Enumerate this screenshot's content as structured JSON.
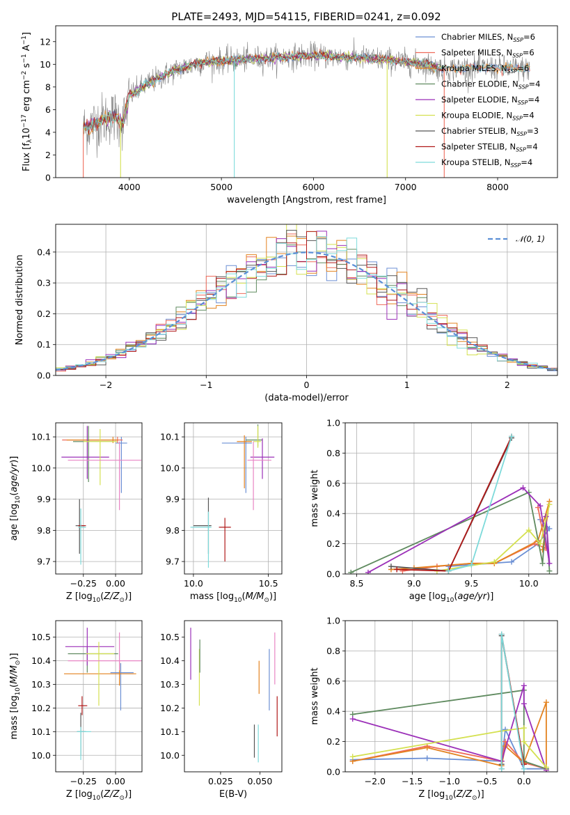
{
  "title": "PLATE=2493, MJD=54115, FIBERID=0241, z=0.092",
  "colors": {
    "Chabrier MILES": "#6b8fd4",
    "Salpeter MILES": "#ee6a5a",
    "Kroupa MILES": "#e3821f",
    "Chabrier ELODIE": "#5f8a5f",
    "Salpeter ELODIE": "#9b2fb8",
    "Kroupa ELODIE": "#d4e050",
    "Chabrier STELIB": "#555555",
    "Salpeter STELIB": "#b01818",
    "Kroupa STELIB": "#7ddada",
    "Salpeter MILES alt": "#e884c4",
    "data": "#808080",
    "normal": "#5b8fd6"
  },
  "chart_data": [
    {
      "id": "spectrum",
      "type": "line",
      "xlabel": "wavelength [Angstrom, rest frame]",
      "ylabel": "Flux [f_λ10^-17 erg cm^-2 s^-1 A^-1]",
      "xlim": [
        3200,
        8650
      ],
      "ylim": [
        0,
        13.4
      ],
      "xticks": [
        4000,
        5000,
        6000,
        7000,
        8000
      ],
      "yticks": [
        0,
        2,
        4,
        6,
        8,
        10,
        12
      ],
      "legend": "right",
      "legend_entries": [
        {
          "name": "Chabrier MILES",
          "ssp": "6"
        },
        {
          "name": "Salpeter MILES",
          "ssp": "6"
        },
        {
          "name": "Kroupa MILES",
          "ssp": "6"
        },
        {
          "name": "Chabrier ELODIE",
          "ssp": "4"
        },
        {
          "name": "Salpeter ELODIE",
          "ssp": "4"
        },
        {
          "name": "Kroupa ELODIE",
          "ssp": "4"
        },
        {
          "name": "Chabrier STELIB",
          "ssp": "3"
        },
        {
          "name": "Salpeter STELIB",
          "ssp": "4"
        },
        {
          "name": "Kroupa STELIB",
          "ssp": "4"
        }
      ],
      "data_range": [
        3500,
        8350
      ],
      "continuum": [
        [
          3500,
          4.3
        ],
        [
          3700,
          5.1
        ],
        [
          3850,
          5.4
        ],
        [
          3930,
          4.8
        ],
        [
          4000,
          7.2
        ],
        [
          4200,
          8.3
        ],
        [
          4500,
          9.5
        ],
        [
          4800,
          10.2
        ],
        [
          5200,
          10.4
        ],
        [
          5600,
          10.6
        ],
        [
          6000,
          10.8
        ],
        [
          6400,
          10.6
        ],
        [
          6800,
          10.4
        ],
        [
          7200,
          10.0
        ],
        [
          7400,
          9.6
        ],
        [
          7800,
          9.7
        ],
        [
          8350,
          9.6
        ]
      ]
    },
    {
      "id": "residuals",
      "type": "histogram",
      "xlabel": "(data-model)/error",
      "ylabel": "Normed distribution",
      "xlim": [
        -2.5,
        2.5
      ],
      "ylim": [
        0,
        0.49
      ],
      "xticks": [
        -2,
        -1,
        0,
        1,
        2
      ],
      "yticks": [
        0.0,
        0.1,
        0.2,
        0.3,
        0.4
      ],
      "grid": true,
      "legend": "top-right",
      "legend_label": "𝒩(0, 1)",
      "bin_width": 0.1
    },
    {
      "id": "age-vs-Z",
      "type": "errorbar",
      "xlabel": "Z [log10(Z/Z⊙)]",
      "ylabel": "age  [log10(age/yr)]",
      "xlim": [
        -0.465,
        0.205
      ],
      "ylim": [
        9.66,
        10.145
      ],
      "xticks": [
        -0.25,
        0.0
      ],
      "yticks": [
        9.7,
        9.8,
        9.9,
        10.0,
        10.1
      ],
      "grid": true,
      "points": [
        {
          "model": "Chabrier MILES",
          "x": 0.045,
          "y": 10.08,
          "xerr": [
            0.045,
            0.045
          ],
          "yerr": [
            0.16,
            0.02
          ]
        },
        {
          "model": "Salpeter MILES",
          "x": 0.015,
          "y": 10.09,
          "xerr": [
            0.43,
            0.04
          ],
          "yerr": [
            0.01,
            0.01
          ]
        },
        {
          "model": "Kroupa MILES",
          "x": -0.02,
          "y": 10.09,
          "xerr": [
            0.36,
            0.04
          ],
          "yerr": [
            0.01,
            0.01
          ]
        },
        {
          "model": "Chabrier ELODIE",
          "x": -0.21,
          "y": 10.085,
          "xerr": [
            0.12,
            0.19
          ],
          "yerr": [
            0.13,
            0.05
          ]
        },
        {
          "model": "Salpeter ELODIE",
          "x": -0.22,
          "y": 10.035,
          "xerr": [
            0.2,
            0.17
          ],
          "yerr": [
            0.07,
            0.1
          ]
        },
        {
          "model": "Kroupa ELODIE",
          "x": -0.12,
          "y": 10.085,
          "xerr": [
            0.13,
            0.13
          ],
          "yerr": [
            0.14,
            0.04
          ]
        },
        {
          "model": "Chabrier STELIB",
          "x": -0.28,
          "y": 9.815,
          "xerr": [
            0.03,
            0.04
          ],
          "yerr": [
            0.09,
            0.085
          ]
        },
        {
          "model": "Salpeter STELIB",
          "x": -0.27,
          "y": 9.815,
          "xerr": [
            0.02,
            0.04
          ],
          "yerr": [
            0.005,
            0.005
          ]
        },
        {
          "model": "Kroupa STELIB",
          "x": -0.27,
          "y": 9.81,
          "xerr": [
            0.02,
            0.04
          ],
          "yerr": [
            0.12,
            0.06
          ]
        },
        {
          "model": "Salpeter MILES alt",
          "x": 0.03,
          "y": 10.025,
          "xerr": [
            0.4,
            0.17
          ],
          "yerr": [
            0.16,
            0.06
          ]
        }
      ]
    },
    {
      "id": "age-vs-mass",
      "type": "errorbar",
      "xlabel": "mass [log10(M/M⊙)]",
      "xlim": [
        9.94,
        10.59
      ],
      "ylim": [
        9.66,
        10.145
      ],
      "xticks": [
        10.0,
        10.5
      ],
      "yticks": [
        9.7,
        9.8,
        9.9,
        10.0,
        10.1
      ],
      "grid": true,
      "points": [
        {
          "model": "Chabrier MILES",
          "x": 10.35,
          "y": 10.08,
          "xerr": [
            0.16,
            0.04
          ],
          "yerr": [
            0.16,
            0.02
          ]
        },
        {
          "model": "Kroupa MILES",
          "x": 10.34,
          "y": 10.085,
          "xerr": [
            0.05,
            0.05
          ],
          "yerr": [
            0.15,
            0.02
          ]
        },
        {
          "model": "Chabrier ELODIE",
          "x": 10.43,
          "y": 10.09,
          "xerr": [
            0.08,
            0.03
          ],
          "yerr": [
            0.02,
            0.05
          ]
        },
        {
          "model": "Salpeter ELODIE",
          "x": 10.46,
          "y": 10.035,
          "xerr": [
            0.08,
            0.08
          ],
          "yerr": [
            0.07,
            0.06
          ]
        },
        {
          "model": "Kroupa ELODIE",
          "x": 10.43,
          "y": 10.085,
          "xerr": [
            0.03,
            0.02
          ],
          "yerr": [
            0.02,
            0.05
          ]
        },
        {
          "model": "Salpeter MILES alt",
          "x": 10.4,
          "y": 10.025,
          "xerr": [
            0.04,
            0.12
          ],
          "yerr": [
            0.16,
            0.06
          ]
        },
        {
          "model": "Chabrier STELIB",
          "x": 10.1,
          "y": 9.815,
          "xerr": [
            0.1,
            0.02
          ],
          "yerr": [
            0.09,
            0.09
          ]
        },
        {
          "model": "Salpeter STELIB",
          "x": 10.21,
          "y": 9.81,
          "xerr": [
            0.04,
            0.04
          ],
          "yerr": [
            0.11,
            0.03
          ]
        },
        {
          "model": "Kroupa STELIB",
          "x": 10.1,
          "y": 9.81,
          "xerr": [
            0.12,
            0.02
          ],
          "yerr": [
            0.13,
            0.05
          ]
        }
      ]
    },
    {
      "id": "weight-vs-age",
      "type": "line",
      "xlabel": "age  [log10(age/yr)]",
      "ylabel": "mass weight",
      "xlim": [
        8.4,
        10.25
      ],
      "ylim": [
        0,
        1.0
      ],
      "xticks": [
        8.5,
        9.0,
        9.5,
        10.0
      ],
      "yticks": [
        0.0,
        0.2,
        0.4,
        0.6,
        0.8,
        1.0
      ],
      "grid": true,
      "series": [
        {
          "model": "Chabrier MILES",
          "x": [
            9.3,
            9.85,
            10.08,
            10.18,
            10.1
          ],
          "y": [
            0.05,
            0.08,
            0.2,
            0.3,
            0.36
          ]
        },
        {
          "model": "Salpeter MILES",
          "x": [
            8.9,
            9.2,
            9.5,
            9.7,
            10.05,
            10.15,
            10.08
          ],
          "y": [
            0.02,
            0.05,
            0.07,
            0.07,
            0.2,
            0.17,
            0.44
          ]
        },
        {
          "model": "Kroupa MILES",
          "x": [
            8.8,
            9.0,
            9.5,
            9.7,
            10.08,
            10.18,
            10.12
          ],
          "y": [
            0.03,
            0.04,
            0.07,
            0.07,
            0.22,
            0.48,
            0.16
          ]
        },
        {
          "model": "Chabrier ELODIE",
          "x": [
            8.45,
            10.0,
            10.12,
            10.15,
            10.18
          ],
          "y": [
            0.01,
            0.54,
            0.07,
            0.38,
            0.02
          ]
        },
        {
          "model": "Salpeter ELODIE",
          "x": [
            8.6,
            9.95,
            10.1,
            10.18,
            10.15
          ],
          "y": [
            0.01,
            0.57,
            0.45,
            0.07,
            0.38
          ]
        },
        {
          "model": "Kroupa ELODIE",
          "x": [
            9.2,
            9.7,
            10.0,
            10.1,
            10.18
          ],
          "y": [
            0.02,
            0.08,
            0.29,
            0.2,
            0.46
          ]
        },
        {
          "model": "Chabrier STELIB",
          "x": [
            8.8,
            9.3,
            9.85
          ],
          "y": [
            0.05,
            0.02,
            0.9
          ]
        },
        {
          "model": "Salpeter STELIB",
          "x": [
            8.85,
            9.3,
            9.85
          ],
          "y": [
            0.03,
            0.02,
            0.91
          ]
        },
        {
          "model": "Kroupa STELIB",
          "x": [
            9.3,
            9.5,
            9.85
          ],
          "y": [
            0.02,
            0.06,
            0.91
          ]
        }
      ]
    },
    {
      "id": "mass-vs-Z",
      "type": "errorbar",
      "xlabel": "Z [log10(Z/Z⊙)]",
      "ylabel": "mass [log10(M/M⊙)]",
      "xlim": [
        -0.465,
        0.205
      ],
      "ylim": [
        9.93,
        10.57
      ],
      "xticks": [
        -0.25,
        0.0
      ],
      "yticks": [
        10.0,
        10.1,
        10.2,
        10.3,
        10.4,
        10.5
      ],
      "grid": true,
      "points": [
        {
          "model": "Chabrier MILES",
          "x": 0.04,
          "y": 10.35,
          "xerr": [
            0.08,
            0.1
          ],
          "yerr": [
            0.16,
            0.04
          ]
        },
        {
          "model": "Kroupa MILES",
          "x": 0.03,
          "y": 10.345,
          "xerr": [
            0.43,
            0.13
          ],
          "yerr": [
            0.05,
            0.05
          ]
        },
        {
          "model": "Chabrier ELODIE",
          "x": -0.22,
          "y": 10.43,
          "xerr": [
            0.15,
            0.24
          ],
          "yerr": [
            0.08,
            0.03
          ]
        },
        {
          "model": "Salpeter ELODIE",
          "x": -0.22,
          "y": 10.46,
          "xerr": [
            0.17,
            0.21
          ],
          "yerr": [
            0.08,
            0.08
          ]
        },
        {
          "model": "Kroupa ELODIE",
          "x": -0.13,
          "y": 10.43,
          "xerr": [
            0.1,
            0.12
          ],
          "yerr": [
            0.22,
            0.05
          ]
        },
        {
          "model": "Salpeter MILES alt",
          "x": 0.03,
          "y": 10.4,
          "xerr": [
            0.4,
            0.17
          ],
          "yerr": [
            0.04,
            0.12
          ]
        },
        {
          "model": "Chabrier STELIB",
          "x": -0.27,
          "y": 10.1,
          "xerr": [
            0.03,
            0.04
          ],
          "yerr": [
            0.1,
            0.08
          ]
        },
        {
          "model": "Salpeter STELIB",
          "x": -0.26,
          "y": 10.21,
          "xerr": [
            0.03,
            0.04
          ],
          "yerr": [
            0.04,
            0.04
          ]
        },
        {
          "model": "Kroupa STELIB",
          "x": -0.27,
          "y": 10.1,
          "xerr": [
            0.03,
            0.08
          ],
          "yerr": [
            0.12,
            0.02
          ]
        }
      ]
    },
    {
      "id": "mass-vs-EBV",
      "type": "errorbar",
      "xlabel": "E(B-V)",
      "xlim": [
        0.002,
        0.064
      ],
      "ylim": [
        9.93,
        10.57
      ],
      "xticks": [
        0.025,
        0.05
      ],
      "yticks": [
        10.0,
        10.1,
        10.2,
        10.3,
        10.4,
        10.5
      ],
      "grid": false,
      "points": [
        {
          "model": "Salpeter ELODIE",
          "x": 0.006,
          "y": 10.43,
          "yerr": [
            0.11,
            0.11
          ]
        },
        {
          "model": "Kroupa ELODIE",
          "x": 0.0115,
          "y": 10.33,
          "yerr": [
            0.12,
            0.12
          ]
        },
        {
          "model": "Chabrier ELODIE",
          "x": 0.0118,
          "y": 10.42,
          "yerr": [
            0.07,
            0.07
          ]
        },
        {
          "model": "Chabrier STELIB",
          "x": 0.0465,
          "y": 10.07,
          "yerr": [
            0.08,
            0.06
          ]
        },
        {
          "model": "Kroupa STELIB",
          "x": 0.049,
          "y": 10.07,
          "yerr": [
            0.1,
            0.06
          ]
        },
        {
          "model": "Kroupa MILES",
          "x": 0.0495,
          "y": 10.33,
          "yerr": [
            0.07,
            0.07
          ]
        },
        {
          "model": "Chabrier MILES",
          "x": 0.056,
          "y": 10.32,
          "yerr": [
            0.13,
            0.13
          ]
        },
        {
          "model": "Salpeter MILES alt",
          "x": 0.0595,
          "y": 10.41,
          "yerr": [
            0.11,
            0.11
          ]
        },
        {
          "model": "Salpeter STELIB",
          "x": 0.061,
          "y": 10.17,
          "yerr": [
            0.09,
            0.08
          ]
        }
      ]
    },
    {
      "id": "weight-vs-Z",
      "type": "line",
      "xlabel": "Z [log10(Z/Z⊙)]",
      "ylabel": "mass weight",
      "xlim": [
        -2.4,
        0.45
      ],
      "ylim": [
        0,
        1.0
      ],
      "xticks": [
        -2.0,
        -1.5,
        -1.0,
        -0.5,
        0.0
      ],
      "yticks": [
        0.0,
        0.2,
        0.4,
        0.6,
        0.8,
        1.0
      ],
      "grid": true,
      "series": [
        {
          "model": "Chabrier MILES",
          "x": [
            -2.3,
            -1.3,
            -0.3,
            -0.25,
            0.0,
            0.3
          ],
          "y": [
            0.08,
            0.09,
            0.07,
            0.28,
            0.02,
            0.02
          ]
        },
        {
          "model": "Salpeter MILES",
          "x": [
            -2.3,
            -1.3,
            -0.3,
            -0.25,
            0.0,
            0.3
          ],
          "y": [
            0.07,
            0.17,
            0.07,
            0.2,
            0.06,
            0.02
          ]
        },
        {
          "model": "Kroupa MILES",
          "x": [
            -2.3,
            -1.3,
            -0.3,
            -0.25,
            0.0,
            0.3,
            0.3
          ],
          "y": [
            0.07,
            0.16,
            0.04,
            0.17,
            0.06,
            0.46,
            0.02
          ]
        },
        {
          "model": "Chabrier ELODIE",
          "x": [
            -2.3,
            0.0,
            0.0,
            0.3
          ],
          "y": [
            0.38,
            0.54,
            0.07,
            0.02
          ]
        },
        {
          "model": "Salpeter ELODIE",
          "x": [
            -2.3,
            -0.3,
            0.0,
            0.0,
            0.3
          ],
          "y": [
            0.35,
            0.07,
            0.57,
            0.45,
            0.01
          ]
        },
        {
          "model": "Kroupa ELODIE",
          "x": [
            -2.3,
            -0.3,
            0.0,
            0.0,
            0.3
          ],
          "y": [
            0.1,
            0.27,
            0.29,
            0.2,
            0.03
          ]
        },
        {
          "model": "Chabrier STELIB",
          "x": [
            -0.3,
            -0.3,
            0.0
          ],
          "y": [
            0.05,
            0.9,
            0.05
          ]
        },
        {
          "model": "Salpeter STELIB",
          "x": [
            -0.3,
            -0.3,
            0.0
          ],
          "y": [
            0.02,
            0.91,
            0.05
          ]
        },
        {
          "model": "Kroupa STELIB",
          "x": [
            -0.3,
            -0.3,
            0.0
          ],
          "y": [
            0.02,
            0.91,
            0.02
          ]
        }
      ]
    }
  ]
}
